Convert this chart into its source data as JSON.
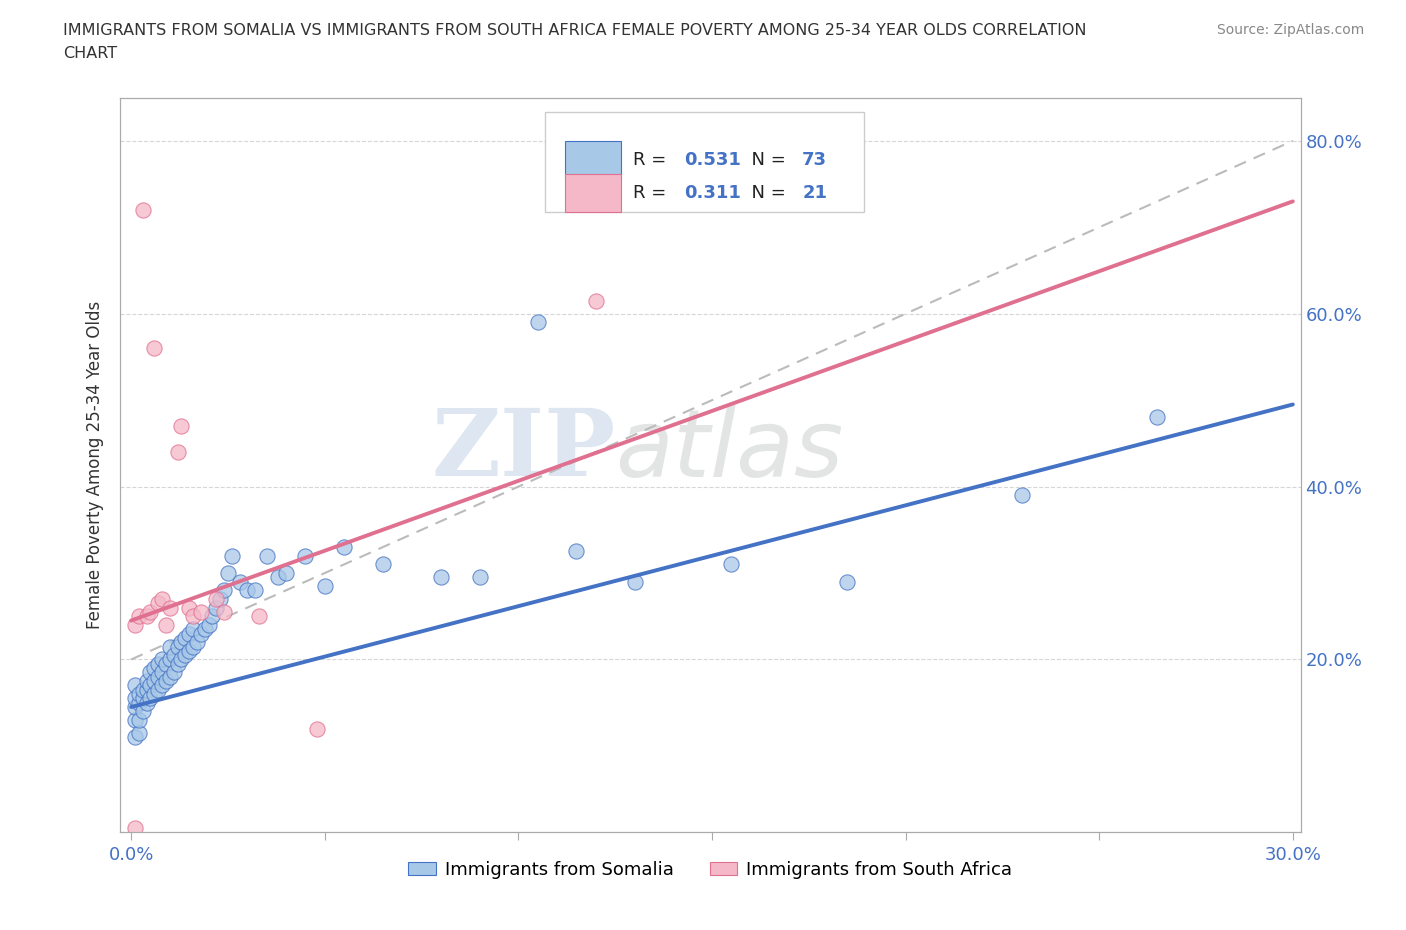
{
  "title_line1": "IMMIGRANTS FROM SOMALIA VS IMMIGRANTS FROM SOUTH AFRICA FEMALE POVERTY AMONG 25-34 YEAR OLDS CORRELATION",
  "title_line2": "CHART",
  "source": "Source: ZipAtlas.com",
  "ylabel": "Female Poverty Among 25-34 Year Olds",
  "watermark_zip": "ZIP",
  "watermark_atlas": "atlas",
  "somalia_color": "#A8C8E8",
  "south_africa_color": "#F4B8C8",
  "somalia_edge_color": "#4472C4",
  "south_africa_edge_color": "#E07090",
  "somalia_line_color": "#4472C4",
  "south_africa_line_color": "#E07090",
  "trendline_dashed_color": "#BBBBBB",
  "R_somalia": 0.531,
  "N_somalia": 73,
  "R_south_africa": 0.311,
  "N_south_africa": 21,
  "xlim": [
    -0.003,
    0.302
  ],
  "ylim": [
    0.0,
    0.85
  ],
  "xlim_data": [
    0.0,
    0.3
  ],
  "somalia_trend": [
    0.145,
    0.495
  ],
  "sa_trend": [
    0.245,
    0.73
  ],
  "dashed_trend": [
    0.2,
    0.8
  ],
  "somalia_x": [
    0.001,
    0.001,
    0.001,
    0.001,
    0.001,
    0.002,
    0.002,
    0.002,
    0.002,
    0.003,
    0.003,
    0.003,
    0.004,
    0.004,
    0.004,
    0.005,
    0.005,
    0.005,
    0.006,
    0.006,
    0.006,
    0.007,
    0.007,
    0.007,
    0.008,
    0.008,
    0.008,
    0.009,
    0.009,
    0.01,
    0.01,
    0.01,
    0.011,
    0.011,
    0.012,
    0.012,
    0.013,
    0.013,
    0.014,
    0.014,
    0.015,
    0.015,
    0.016,
    0.016,
    0.017,
    0.018,
    0.019,
    0.02,
    0.021,
    0.022,
    0.023,
    0.024,
    0.025,
    0.026,
    0.028,
    0.03,
    0.032,
    0.035,
    0.038,
    0.04,
    0.045,
    0.05,
    0.055,
    0.065,
    0.08,
    0.09,
    0.105,
    0.115,
    0.13,
    0.155,
    0.185,
    0.23,
    0.265
  ],
  "somalia_y": [
    0.11,
    0.13,
    0.145,
    0.155,
    0.17,
    0.115,
    0.13,
    0.15,
    0.16,
    0.14,
    0.155,
    0.165,
    0.15,
    0.165,
    0.175,
    0.155,
    0.17,
    0.185,
    0.16,
    0.175,
    0.19,
    0.165,
    0.18,
    0.195,
    0.17,
    0.185,
    0.2,
    0.175,
    0.195,
    0.18,
    0.2,
    0.215,
    0.185,
    0.205,
    0.195,
    0.215,
    0.2,
    0.22,
    0.205,
    0.225,
    0.21,
    0.23,
    0.215,
    0.235,
    0.22,
    0.23,
    0.235,
    0.24,
    0.25,
    0.26,
    0.27,
    0.28,
    0.3,
    0.32,
    0.29,
    0.28,
    0.28,
    0.32,
    0.295,
    0.3,
    0.32,
    0.285,
    0.33,
    0.31,
    0.295,
    0.295,
    0.59,
    0.325,
    0.29,
    0.31,
    0.29,
    0.39,
    0.48
  ],
  "south_africa_x": [
    0.001,
    0.001,
    0.002,
    0.003,
    0.004,
    0.005,
    0.006,
    0.007,
    0.008,
    0.009,
    0.01,
    0.012,
    0.013,
    0.015,
    0.016,
    0.018,
    0.022,
    0.024,
    0.033,
    0.048,
    0.12
  ],
  "south_africa_y": [
    0.005,
    0.24,
    0.25,
    0.72,
    0.25,
    0.255,
    0.56,
    0.265,
    0.27,
    0.24,
    0.26,
    0.44,
    0.47,
    0.26,
    0.25,
    0.255,
    0.27,
    0.255,
    0.25,
    0.12,
    0.615
  ],
  "background_color": "#FFFFFF",
  "grid_color": "#CCCCCC"
}
